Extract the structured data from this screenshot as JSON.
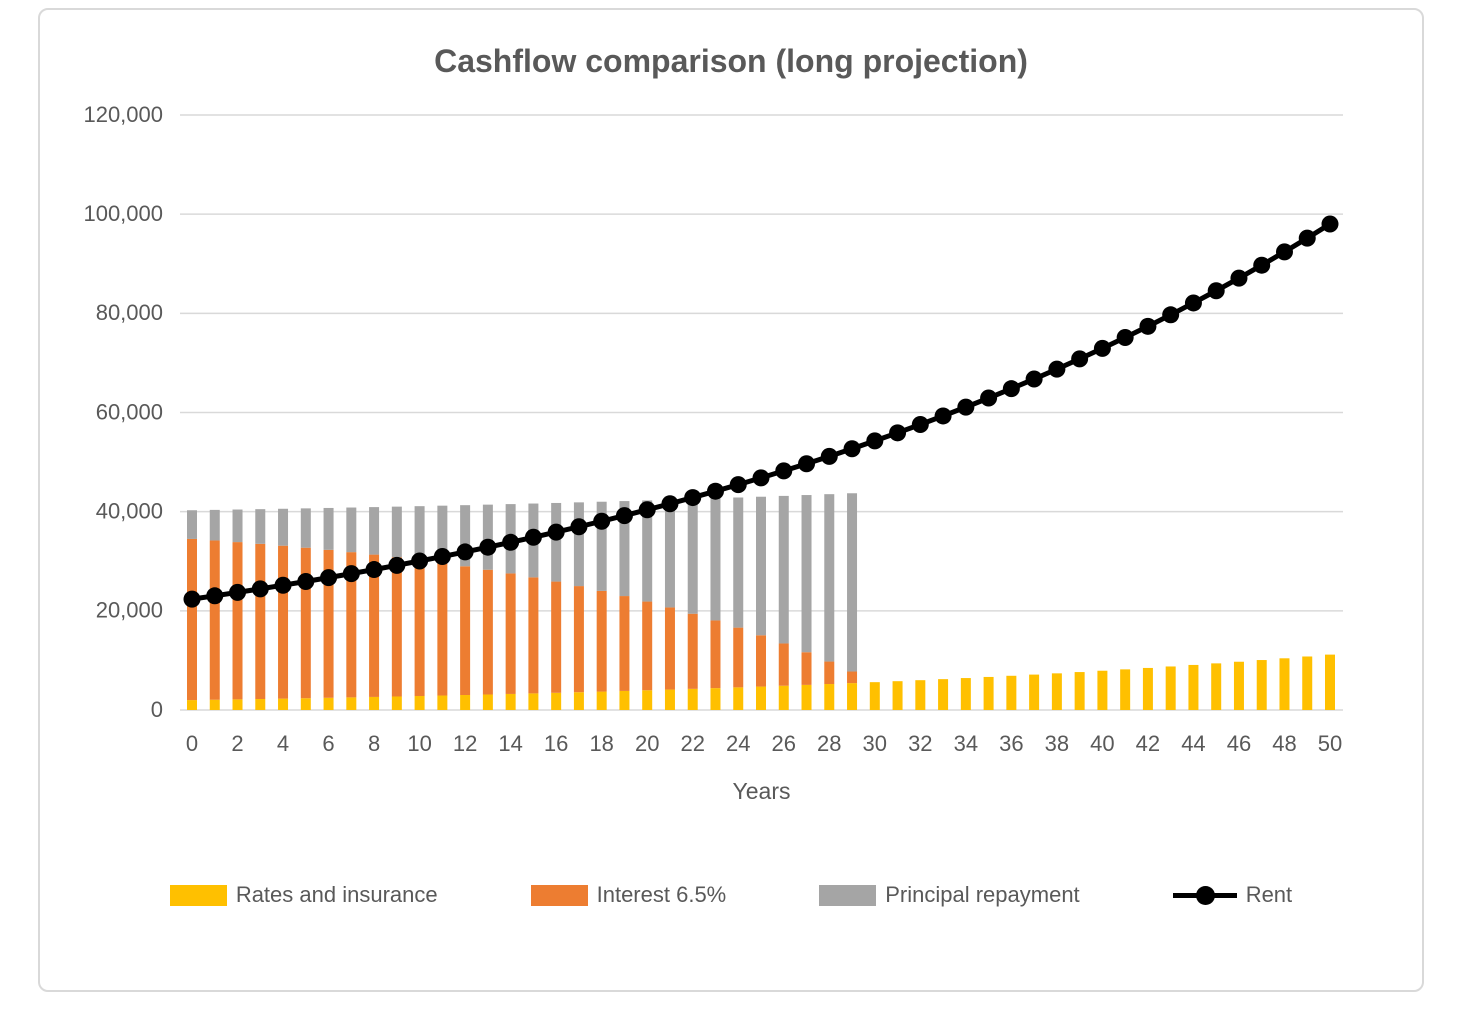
{
  "style": {
    "background": "#ffffff",
    "frame_border_color": "#d9d9d9",
    "text_color": "#595959",
    "grid_color": "#d9d9d9",
    "axis_line_color": "#d9d9d9"
  },
  "chart_data": {
    "type": "bar",
    "subtype": "stacked-bars-with-line-overlay",
    "title": "Cashflow comparison (long projection)",
    "xlabel": "Years",
    "ylabel": "",
    "grid": "horizontal",
    "legend_position": "bottom",
    "ylim": [
      0,
      120000
    ],
    "ytick_step": 20000,
    "ytick_labels": [
      "0",
      "20,000",
      "40,000",
      "60,000",
      "80,000",
      "100,000",
      "120,000"
    ],
    "x": [
      0,
      1,
      2,
      3,
      4,
      5,
      6,
      7,
      8,
      9,
      10,
      11,
      12,
      13,
      14,
      15,
      16,
      17,
      18,
      19,
      20,
      21,
      22,
      23,
      24,
      25,
      26,
      27,
      28,
      29,
      30,
      31,
      32,
      33,
      34,
      35,
      36,
      37,
      38,
      39,
      40,
      41,
      42,
      43,
      44,
      45,
      46,
      47,
      48,
      49,
      50
    ],
    "xtick_step": 2,
    "xtick_labels": [
      "0",
      "2",
      "4",
      "6",
      "8",
      "10",
      "12",
      "14",
      "16",
      "18",
      "20",
      "22",
      "24",
      "26",
      "28",
      "30",
      "32",
      "34",
      "36",
      "38",
      "40",
      "42",
      "44",
      "46",
      "48",
      "50"
    ],
    "series": [
      {
        "name": "Rates and insurance",
        "type": "bar",
        "stack": true,
        "color": "#FFC000",
        "values": [
          2000,
          2070,
          2142,
          2217,
          2295,
          2375,
          2459,
          2545,
          2634,
          2726,
          2821,
          2920,
          3022,
          3128,
          3237,
          3351,
          3468,
          3589,
          3715,
          3845,
          3980,
          4119,
          4263,
          4412,
          4567,
          4726,
          4892,
          5063,
          5240,
          5424,
          5614,
          5810,
          6013,
          6224,
          6442,
          6667,
          6900,
          7142,
          7392,
          7651,
          7919,
          8196,
          8482,
          8779,
          9087,
          9405,
          9734,
          10075,
          10427,
          10792,
          11170
        ]
      },
      {
        "name": "Interest 6.5%",
        "type": "bar",
        "stack": true,
        "color": "#ED7D31",
        "values": [
          32500,
          32124,
          31723,
          31296,
          30842,
          30358,
          29842,
          29293,
          28708,
          28086,
          27423,
          26716,
          25964,
          25163,
          24310,
          23401,
          22433,
          21403,
          20305,
          19136,
          17891,
          16566,
          15154,
          13650,
          12048,
          10343,
          8526,
          6592,
          4531,
          2337,
          0,
          0,
          0,
          0,
          0,
          0,
          0,
          0,
          0,
          0,
          0,
          0,
          0,
          0,
          0,
          0,
          0,
          0,
          0,
          0,
          0
        ]
      },
      {
        "name": "Principal repayment",
        "type": "bar",
        "stack": true,
        "color": "#A5A5A5",
        "values": [
          5789,
          6165,
          6566,
          6993,
          7447,
          7931,
          8447,
          8996,
          9580,
          10203,
          10866,
          11573,
          12325,
          13126,
          13979,
          14888,
          15855,
          16886,
          17984,
          19152,
          20397,
          21723,
          23135,
          24639,
          26240,
          27946,
          29763,
          31697,
          33757,
          35952,
          0,
          0,
          0,
          0,
          0,
          0,
          0,
          0,
          0,
          0,
          0,
          0,
          0,
          0,
          0,
          0,
          0,
          0,
          0,
          0,
          0
        ]
      },
      {
        "name": "Rent",
        "type": "line",
        "color": "#000000",
        "marker": "circle",
        "values": [
          22360,
          23031,
          23722,
          24433,
          25166,
          25921,
          26699,
          27500,
          28325,
          29175,
          30050,
          30951,
          31880,
          32836,
          33821,
          34836,
          35881,
          36958,
          38066,
          39208,
          40385,
          41596,
          42844,
          44129,
          45453,
          46817,
          48221,
          49668,
          51158,
          52693,
          54274,
          55902,
          57579,
          59306,
          61085,
          62918,
          64805,
          66750,
          68752,
          70815,
          72939,
          75127,
          77381,
          79703,
          82094,
          84556,
          87093,
          89706,
          92397,
          95169,
          98024
        ]
      }
    ]
  }
}
